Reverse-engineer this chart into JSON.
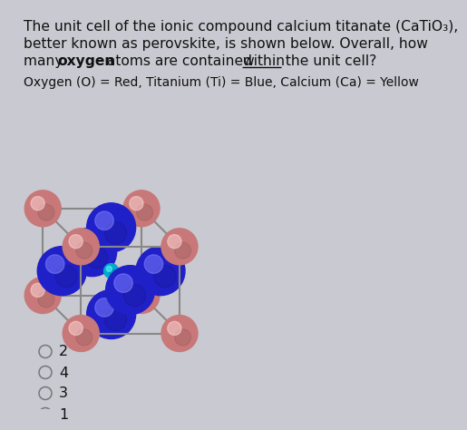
{
  "fig_bg": "#c9c9d1",
  "oxygen_color": "#c87878",
  "titanium_color": "#2020c8",
  "body_center_color": "#00aacc",
  "edge_color": "#888888",
  "text_color": "#111111",
  "legend": "Oxygen (O) = Red, Titanium (Ti) = Blue, Calcium (Ca) = Yellow",
  "choices": [
    "2",
    "4",
    "3",
    "1"
  ],
  "cube_bx": 188,
  "cube_by": 358,
  "cube_sz": 87,
  "cube_dpx": -42,
  "cube_dpy": -42,
  "r_corner": 20,
  "r_face": 27,
  "r_body": 8
}
